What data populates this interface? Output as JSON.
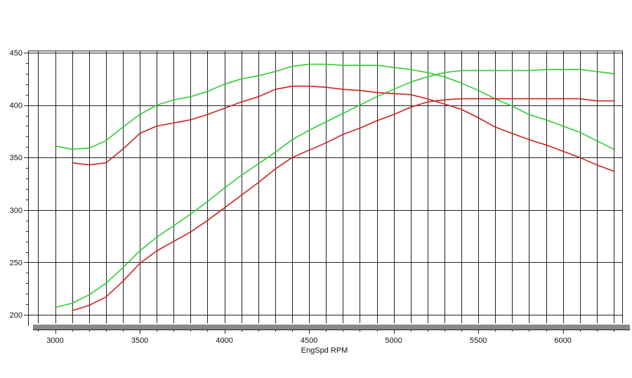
{
  "chart_data": {
    "type": "line",
    "title": "",
    "xlabel": "EngSpd RPM",
    "ylabel": "",
    "xlim": [
      2840,
      6350
    ],
    "ylim": [
      192,
      452
    ],
    "xticks": [
      3000,
      3500,
      4000,
      4500,
      5000,
      5500,
      6000
    ],
    "yticks": [
      200,
      250,
      300,
      350,
      400,
      450
    ],
    "grid": true,
    "legend": "none",
    "series": [
      {
        "color": "#33cc33",
        "x": [
          3000,
          3100,
          3200,
          3300,
          3400,
          3500,
          3600,
          3700,
          3800,
          3900,
          4000,
          4100,
          4200,
          4300,
          4400,
          4500,
          4600,
          4700,
          4800,
          4900,
          5000,
          5100,
          5200,
          5300,
          5400,
          5500,
          5600,
          5700,
          5800,
          5900,
          6000,
          6100,
          6200,
          6300
        ],
        "values": [
          361,
          358,
          359,
          366,
          379,
          391,
          400,
          405,
          408,
          413,
          420,
          425,
          428,
          432,
          437,
          439,
          439,
          438,
          438,
          438,
          436,
          434,
          431,
          427,
          421,
          414,
          406,
          399,
          391,
          386,
          380,
          374,
          366,
          358
        ]
      },
      {
        "color": "#33cc33",
        "x": [
          3000,
          3100,
          3200,
          3300,
          3400,
          3500,
          3600,
          3700,
          3800,
          3900,
          4000,
          4100,
          4200,
          4300,
          4400,
          4500,
          4600,
          4700,
          4800,
          4900,
          5000,
          5100,
          5200,
          5300,
          5400,
          5500,
          5600,
          5700,
          5800,
          5900,
          6000,
          6100,
          6200,
          6300
        ],
        "values": [
          207,
          211,
          219,
          230,
          245,
          261,
          274,
          285,
          296,
          308,
          321,
          333,
          344,
          355,
          367,
          376,
          384,
          392,
          400,
          408,
          415,
          422,
          427,
          431,
          433,
          433,
          433,
          433,
          433,
          434,
          434,
          434,
          432,
          430
        ]
      },
      {
        "color": "#cc2222",
        "x": [
          3100,
          3200,
          3300,
          3400,
          3500,
          3600,
          3700,
          3800,
          3900,
          4000,
          4100,
          4200,
          4300,
          4400,
          4500,
          4600,
          4700,
          4800,
          4900,
          5000,
          5100,
          5200,
          5300,
          5400,
          5500,
          5600,
          5700,
          5800,
          5900,
          6000,
          6100,
          6200,
          6300
        ],
        "values": [
          345,
          343,
          345,
          358,
          373,
          380,
          383,
          386,
          391,
          397,
          403,
          408,
          415,
          418,
          418,
          417,
          415,
          414,
          412,
          411,
          410,
          406,
          401,
          396,
          388,
          379,
          373,
          367,
          362,
          356,
          350,
          343,
          337
        ]
      },
      {
        "color": "#cc2222",
        "x": [
          3100,
          3200,
          3300,
          3400,
          3500,
          3600,
          3700,
          3800,
          3900,
          4000,
          4100,
          4200,
          4300,
          4400,
          4500,
          4600,
          4700,
          4800,
          4900,
          5000,
          5100,
          5200,
          5300,
          5400,
          5500,
          5600,
          5700,
          5800,
          5900,
          6000,
          6100,
          6200,
          6300
        ],
        "values": [
          204,
          209,
          217,
          232,
          249,
          261,
          270,
          279,
          290,
          302,
          314,
          326,
          339,
          350,
          357,
          364,
          372,
          378,
          385,
          391,
          398,
          403,
          405,
          406,
          406,
          406,
          406,
          406,
          406,
          406,
          406,
          404,
          404
        ]
      }
    ]
  }
}
